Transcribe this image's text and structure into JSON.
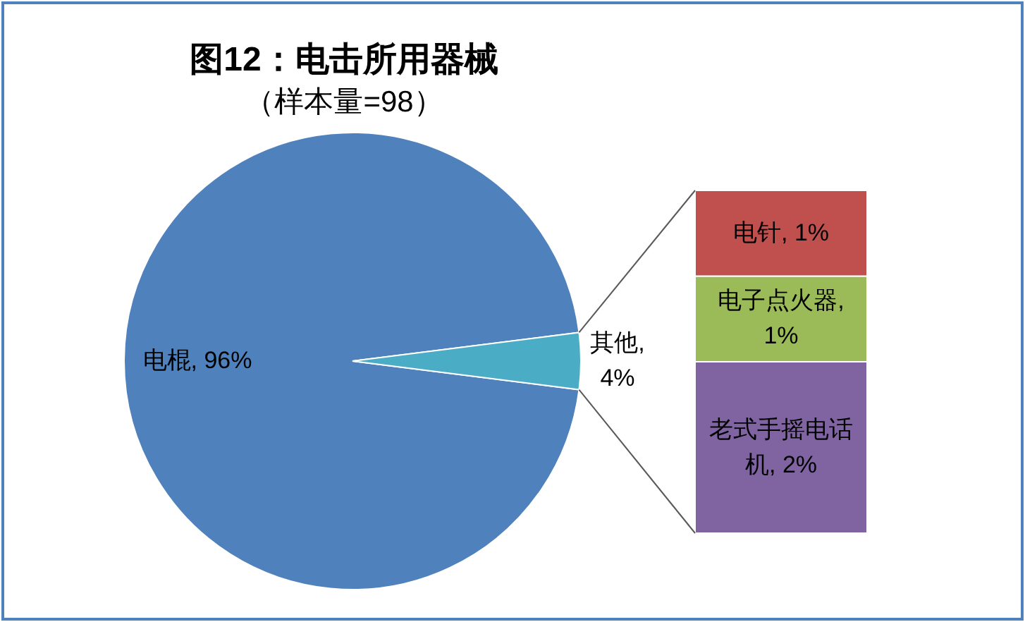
{
  "chart_data": [
    {
      "type": "pie",
      "title": "图12：电击所用器械",
      "subtitle": "（样本量=98）",
      "categories": [
        "电棍",
        "其他"
      ],
      "values": [
        96,
        4
      ],
      "colors": [
        "#4f81bd",
        "#4bacc6"
      ],
      "value_labels": [
        ", 96%",
        ", 4%"
      ]
    },
    {
      "type": "bar",
      "stacked": true,
      "categories": [
        null
      ],
      "series": [
        {
          "name": "老式手摇电话机",
          "color": "#8064a2",
          "values": [
            2
          ],
          "value_labels": [
            ", 2%"
          ]
        },
        {
          "name": "电子点火器",
          "color": "#9bbb59",
          "values": [
            1
          ],
          "value_labels": [
            ", 1%"
          ]
        },
        {
          "name": "电针",
          "color": "#c0504d",
          "values": [
            1
          ],
          "value_labels": [
            ", 1%"
          ]
        }
      ]
    }
  ]
}
